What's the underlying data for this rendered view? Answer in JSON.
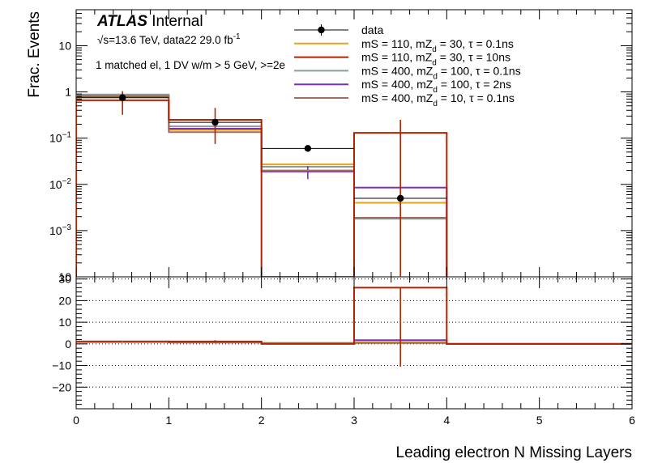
{
  "chart_data": [
    {
      "type": "histogram",
      "panel": "top",
      "yscale": "log",
      "ylabel": "Frac. Events",
      "xlim": [
        0,
        6
      ],
      "ylim": [
        0.0001,
        60
      ],
      "ytick_labels": [
        {
          "value": 0.001,
          "base": "10",
          "exp": "−3"
        },
        {
          "value": 0.01,
          "base": "10",
          "exp": "−2"
        },
        {
          "value": 0.1,
          "base": "10",
          "exp": "−1"
        },
        {
          "value": 1,
          "base": "1",
          "exp": ""
        },
        {
          "value": 10,
          "base": "10",
          "exp": ""
        }
      ],
      "bin_edges": [
        0,
        1,
        2,
        3,
        4
      ],
      "annotations": {
        "atlas": "ATLAS",
        "internal": "Internal",
        "energy_root": "√s",
        "energy_text": "=13.6 TeV, data22 29.0 fb",
        "energy_exp": "-1",
        "selection": "1 matched el, 1 DV w/m > 5 GeV, >=2e"
      },
      "data": {
        "name": "data",
        "color": "#000000",
        "x": [
          0.5,
          1.5,
          2.5,
          3.5
        ],
        "y": [
          0.75,
          0.22,
          0.06,
          0.005
        ],
        "yerr_low": [
          0.72,
          0.2,
          0.057,
          0.0049
        ],
        "yerr_high": [
          0.78,
          0.24,
          0.063,
          0.0051
        ]
      },
      "series": [
        {
          "name_parts": [
            "mS = 110, mZ",
            "d",
            " = 30, τ = 0.1ns"
          ],
          "color": "#e8a317",
          "values": [
            0.78,
            0.15,
            0.027,
            0.004
          ],
          "err": [
            null,
            null,
            null,
            null
          ]
        },
        {
          "name_parts": [
            "mS = 110, mZ",
            "d",
            " = 30, τ = 10ns"
          ],
          "color": "#b22200",
          "values": [
            0.66,
            0.25,
            8e-05,
            0.13
          ],
          "err": [
            [
              0.32,
              1.0
            ],
            [
              0.075,
              0.45
            ],
            null,
            [
              5e-05,
              0.25
            ]
          ]
        },
        {
          "name_parts": [
            "mS = 400, mZ",
            "d",
            " = 100, τ = 0.1ns"
          ],
          "color": "#8c9c9c",
          "values": [
            0.88,
            0.18,
            0.024,
            0.0018
          ],
          "err": [
            null,
            null,
            null,
            null
          ]
        },
        {
          "name_parts": [
            "mS = 400, mZ",
            "d",
            " = 100, τ = 2ns"
          ],
          "color": "#7b2fbe",
          "values": [
            0.8,
            0.16,
            0.019,
            0.0085
          ],
          "err": [
            null,
            null,
            [
              0.013,
              0.025
            ],
            null
          ]
        },
        {
          "name_parts": [
            "mS = 400, mZ",
            "d",
            " = 10, τ = 0.1ns"
          ],
          "color": "#a0705a",
          "values": [
            0.82,
            0.135,
            0.02,
            0.0019
          ],
          "err": [
            [
              0.55,
              1.05
            ],
            null,
            null,
            null
          ]
        }
      ],
      "legend": {
        "placement": "top-right",
        "data_label": "data"
      }
    },
    {
      "type": "histogram",
      "panel": "ratio",
      "yscale": "linear",
      "ylim": [
        -30,
        31
      ],
      "yticks": [
        -20,
        -10,
        0,
        10,
        20,
        30
      ],
      "ytick_labels": [
        "−20",
        "−10",
        "0",
        "10",
        "20",
        "30"
      ],
      "xlabel": "Leading electron N Missing Layers",
      "xticks": [
        0,
        1,
        2,
        3,
        4,
        5,
        6
      ],
      "xtick_labels": [
        "0",
        "1",
        "2",
        "3",
        "4",
        "5",
        "6"
      ],
      "grid_y": true,
      "bin_edges": [
        0,
        1,
        2,
        3,
        4,
        6
      ],
      "series": [
        {
          "color": "#e8a317",
          "values": [
            1.05,
            0.7,
            0.45,
            0.8,
            0
          ]
        },
        {
          "color": "#8c9c9c",
          "values": [
            1.15,
            0.8,
            0.4,
            0.4,
            0
          ]
        },
        {
          "color": "#7b2fbe",
          "values": [
            1.05,
            0.75,
            0.3,
            1.7,
            0
          ]
        },
        {
          "color": "#a0705a",
          "values": [
            1.1,
            0.6,
            0.33,
            0.4,
            0
          ]
        },
        {
          "color": "#b22200",
          "values": [
            0.9,
            1.1,
            0.0,
            26,
            0
          ]
        }
      ],
      "errorbars": [
        {
          "color": "#b22200",
          "x": 3.5,
          "low": -10.5,
          "high": 26
        },
        {
          "color": "#b22200",
          "x": 1.5,
          "low": 0.6,
          "high": 1.7
        },
        {
          "color": "#a0705a",
          "x": 0.5,
          "low": 0.8,
          "high": 1.4
        }
      ]
    }
  ]
}
